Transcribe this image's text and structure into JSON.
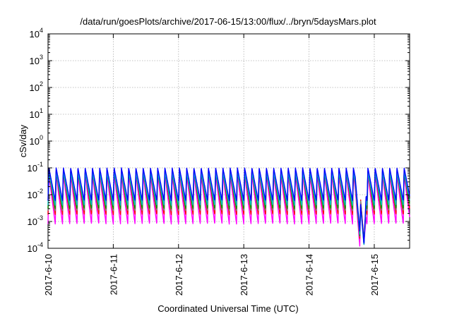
{
  "chart_data": {
    "type": "line",
    "title": "/data/run/goesPlots/archive/2017-06-15/13:00/flux/../bryn/5daysMars.plot",
    "xlabel": "Coordinated Universal Time (UTC)",
    "ylabel": "cSv/day",
    "yscale": "log",
    "ylim": [
      0.0001,
      10000
    ],
    "y_ticks": [
      {
        "base": "10",
        "exp": "-4"
      },
      {
        "base": "10",
        "exp": "-3"
      },
      {
        "base": "10",
        "exp": "-2"
      },
      {
        "base": "10",
        "exp": "-1"
      },
      {
        "base": "10",
        "exp": "0"
      },
      {
        "base": "10",
        "exp": "1"
      },
      {
        "base": "10",
        "exp": "2"
      },
      {
        "base": "10",
        "exp": "3"
      },
      {
        "base": "10",
        "exp": "4"
      }
    ],
    "xlim": [
      "2017-06-10 00:00",
      "2017-06-15 13:00"
    ],
    "x_ticks": [
      "2017-6-10",
      "2017-6-11",
      "2017-6-12",
      "2017-6-13",
      "2017-6-14",
      "2017-6-15"
    ],
    "grid": true,
    "pattern": {
      "description": "sawtooth: sharp rise to peak then decay, repeating",
      "cycles_per_day": 9,
      "dip": {
        "start": "2017-06-14 17:00",
        "end": "2017-06-14 21:00"
      }
    },
    "series": [
      {
        "color": "#ff00ff",
        "peak": 0.055,
        "trough": 0.0008
      },
      {
        "color": "#ff0000",
        "peak": 0.075,
        "trough": 0.0018
      },
      {
        "color": "#808080",
        "peak": 0.08,
        "trough": 0.0025
      },
      {
        "color": "#00a000",
        "peak": 0.07,
        "trough": 0.003
      },
      {
        "color": "#00c0c0",
        "peak": 0.07,
        "trough": 0.004
      },
      {
        "color": "#0000ff",
        "peak": 0.1,
        "trough": 0.006
      }
    ]
  }
}
